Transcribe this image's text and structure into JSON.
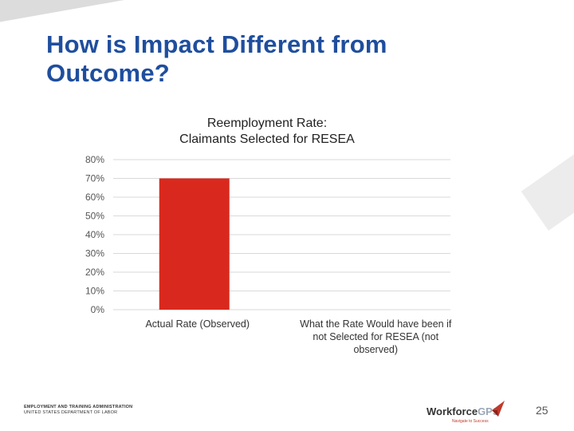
{
  "slide": {
    "title": "How is Impact Different from Outcome?",
    "page_number": "25"
  },
  "footer": {
    "agency_line1": "EMPLOYMENT AND TRAINING ADMINISTRATION",
    "agency_line2": "UNITED STATES DEPARTMENT OF LABOR",
    "logo_text_a": "Workforce",
    "logo_text_b": "GPS",
    "logo_tagline": "Navigate to Success"
  },
  "colors": {
    "title": "#1f4e9e",
    "bar": "#d9291e",
    "grid": "#d9d9d9"
  },
  "icons": [
    "workforcegps-logo-icon"
  ],
  "chart_data": {
    "type": "bar",
    "title": "Reemployment Rate:\nClaimants Selected for RESEA",
    "categories": [
      "Actual Rate (Observed)",
      "What the Rate Would have been if not Selected for RESEA (not observed)"
    ],
    "values": [
      70,
      null
    ],
    "value_unit": "%",
    "ylim": [
      0,
      80
    ],
    "yticks": [
      "0%",
      "10%",
      "20%",
      "30%",
      "40%",
      "50%",
      "60%",
      "70%",
      "80%"
    ],
    "grid": true,
    "legend": "none"
  }
}
